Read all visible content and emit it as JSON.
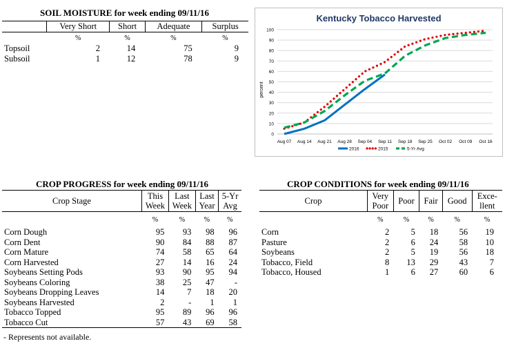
{
  "soil": {
    "title": "SOIL MOISTURE for week ending 09/11/16",
    "headers": [
      "",
      "Very Short",
      "Short",
      "Adequate",
      "Surplus"
    ],
    "pct": [
      "",
      "%",
      "%",
      "%",
      "%"
    ],
    "rows": [
      [
        "Topsoil",
        "2",
        "14",
        "75",
        "9"
      ],
      [
        "Subsoil",
        "1",
        "12",
        "78",
        "9"
      ]
    ]
  },
  "progress": {
    "title": "CROP PROGRESS for week ending 09/11/16",
    "headers": [
      {
        "l1": "Crop Stage",
        "l2": ""
      },
      {
        "l1": "This",
        "l2": "Week"
      },
      {
        "l1": "Last",
        "l2": "Week"
      },
      {
        "l1": "Last",
        "l2": "Year"
      },
      {
        "l1": "5-Yr",
        "l2": "Avg"
      }
    ],
    "pct": [
      "",
      "%",
      "%",
      "%",
      "%"
    ],
    "rows": [
      [
        "Corn Dough",
        "95",
        "93",
        "98",
        "96"
      ],
      [
        "Corn Dent",
        "90",
        "84",
        "88",
        "87"
      ],
      [
        "Corn Mature",
        "74",
        "58",
        "65",
        "64"
      ],
      [
        "Corn Harvested",
        "27",
        "14",
        "16",
        "24"
      ],
      [
        "Soybeans Setting Pods",
        "93",
        "90",
        "95",
        "94"
      ],
      [
        "Soybeans Coloring",
        "38",
        "25",
        "47",
        "-"
      ],
      [
        "Soybeans Dropping Leaves",
        "14",
        "7",
        "18",
        "20"
      ],
      [
        "Soybeans Harvested",
        "2",
        "-",
        "1",
        "1"
      ],
      [
        "Tobacco Topped",
        "95",
        "89",
        "96",
        "96"
      ],
      [
        "Tobacco Cut",
        "57",
        "43",
        "69",
        "58"
      ]
    ],
    "note": "- Represents not available."
  },
  "conditions": {
    "title": "CROP CONDITIONS for week ending 09/11/16",
    "headers": [
      {
        "l1": "Crop",
        "l2": ""
      },
      {
        "l1": "Very",
        "l2": "Poor"
      },
      {
        "l1": "Poor",
        "l2": ""
      },
      {
        "l1": "Fair",
        "l2": ""
      },
      {
        "l1": "Good",
        "l2": ""
      },
      {
        "l1": "Exce-",
        "l2": "llent"
      }
    ],
    "pct": [
      "",
      "%",
      "%",
      "%",
      "%",
      "%"
    ],
    "rows": [
      [
        "Corn",
        "2",
        "5",
        "18",
        "56",
        "19"
      ],
      [
        "Pasture",
        "2",
        "6",
        "24",
        "58",
        "10"
      ],
      [
        "Soybeans",
        "2",
        "5",
        "19",
        "56",
        "18"
      ],
      [
        "Tobacco, Field",
        "8",
        "13",
        "29",
        "43",
        "7"
      ],
      [
        "Tobacco, Housed",
        "1",
        "6",
        "27",
        "60",
        "6"
      ]
    ]
  },
  "chart_data": {
    "type": "line",
    "title": "Kentucky Tobacco Harvested",
    "ylabel": "percent",
    "xlabel": "",
    "ylim": [
      0,
      100
    ],
    "yticks": [
      0,
      10,
      20,
      30,
      40,
      50,
      60,
      70,
      80,
      90,
      100
    ],
    "categories": [
      "Aug 07",
      "Aug 14",
      "Aug 21",
      "Aug 28",
      "Sep 04",
      "Sep 11",
      "Sep 18",
      "Sep 25",
      "Oct 02",
      "Oct 09",
      "Oct 16"
    ],
    "grid": true,
    "legend": "bottom",
    "series": [
      {
        "name": "2016",
        "color": "#0070c0",
        "style": "solid",
        "values": [
          0,
          5,
          13,
          28,
          43,
          57,
          null,
          null,
          null,
          null,
          null
        ]
      },
      {
        "name": "2015",
        "color": "#e00000",
        "style": "dotted",
        "values": [
          5,
          11,
          26,
          43,
          60,
          69,
          84,
          91,
          95,
          97,
          99
        ]
      },
      {
        "name": "5-Yr Avg",
        "color": "#00a651",
        "style": "dashed",
        "values": [
          6,
          11,
          22,
          37,
          51,
          58,
          75,
          85,
          92,
          95,
          97
        ]
      }
    ]
  }
}
